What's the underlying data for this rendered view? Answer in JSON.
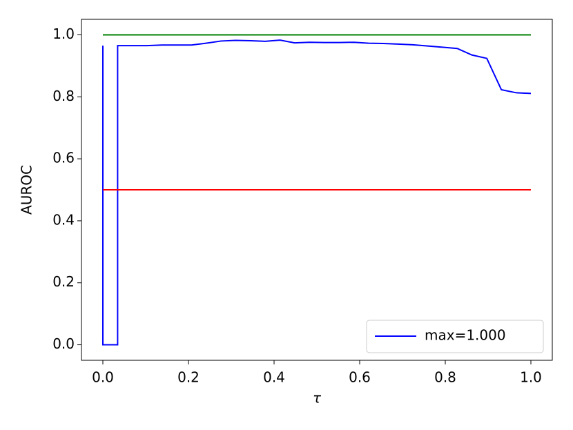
{
  "chart_data": {
    "type": "line",
    "xlabel": "τ",
    "ylabel": "AUROC",
    "xlim": [
      -0.05,
      1.05
    ],
    "ylim": [
      -0.05,
      1.05
    ],
    "xticks": [
      {
        "value": 0,
        "label": "0.0"
      },
      {
        "value": 0.2,
        "label": "0.2"
      },
      {
        "value": 0.4,
        "label": "0.4"
      },
      {
        "value": 0.6,
        "label": "0.6"
      },
      {
        "value": 0.8,
        "label": "0.8"
      },
      {
        "value": 1,
        "label": "1.0"
      }
    ],
    "yticks": [
      {
        "value": 0,
        "label": "0.0"
      },
      {
        "value": 0.2,
        "label": "0.2"
      },
      {
        "value": 0.4,
        "label": "0.4"
      },
      {
        "value": 0.6,
        "label": "0.6"
      },
      {
        "value": 0.8,
        "label": "0.8"
      },
      {
        "value": 1,
        "label": "1.0"
      }
    ],
    "legend": "lower right",
    "series": [
      {
        "name": "max=1.000",
        "color": "#0000ff",
        "x": [
          0,
          0,
          0.0345,
          0.0345,
          0.069,
          0.103,
          0.138,
          0.172,
          0.207,
          0.241,
          0.276,
          0.31,
          0.345,
          0.379,
          0.414,
          0.448,
          0.483,
          0.517,
          0.552,
          0.586,
          0.621,
          0.655,
          0.69,
          0.724,
          0.759,
          0.793,
          0.828,
          0.862,
          0.897,
          0.931,
          0.966,
          1
        ],
        "values": [
          0.965,
          0,
          0,
          0.965,
          0.965,
          0.965,
          0.967,
          0.967,
          0.967,
          0.973,
          0.98,
          0.982,
          0.981,
          0.979,
          0.983,
          0.974,
          0.976,
          0.975,
          0.975,
          0.976,
          0.973,
          0.972,
          0.97,
          0.968,
          0.964,
          0.96,
          0.956,
          0.935,
          0.924,
          0.823,
          0.813,
          0.811
        ]
      },
      {
        "color": "#008000",
        "x": [
          0,
          1
        ],
        "values": [
          1,
          1
        ]
      },
      {
        "color": "#ff0000",
        "x": [
          0,
          1
        ],
        "values": [
          0.5,
          0.5
        ]
      }
    ]
  }
}
